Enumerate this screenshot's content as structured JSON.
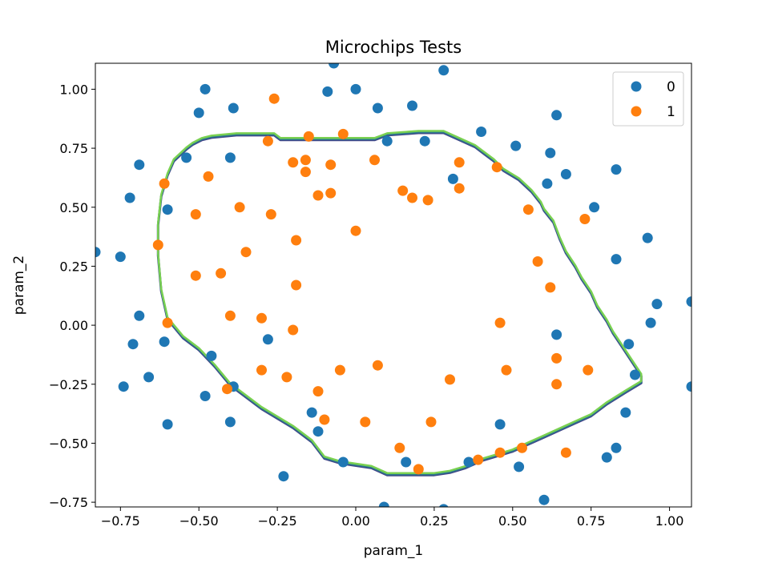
{
  "chart_data": {
    "type": "scatter",
    "title": "Microchips Tests",
    "xlabel": "param_1",
    "ylabel": "param_2",
    "xlim": [
      -0.83,
      1.07
    ],
    "ylim": [
      -0.77,
      1.11
    ],
    "xticks": [
      -0.75,
      -0.5,
      -0.25,
      0.0,
      0.25,
      0.5,
      0.75,
      1.0
    ],
    "xtick_labels": [
      "−0.75",
      "−0.50",
      "−0.25",
      "0.00",
      "0.25",
      "0.50",
      "0.75",
      "1.00"
    ],
    "yticks": [
      -0.75,
      -0.5,
      -0.25,
      0.0,
      0.25,
      0.5,
      0.75,
      1.0
    ],
    "ytick_labels": [
      "−0.75",
      "−0.50",
      "−0.25",
      "0.00",
      "0.25",
      "0.50",
      "0.75",
      "1.00"
    ],
    "grid": false,
    "legend_position": "top-right",
    "series": [
      {
        "name": "0",
        "color": "#1f77b4",
        "points": [
          [
            -0.83,
            0.31
          ],
          [
            -0.75,
            0.29
          ],
          [
            -0.74,
            -0.26
          ],
          [
            -0.72,
            0.54
          ],
          [
            -0.71,
            -0.08
          ],
          [
            -0.69,
            0.68
          ],
          [
            -0.69,
            0.04
          ],
          [
            -0.66,
            -0.22
          ],
          [
            -0.61,
            -0.07
          ],
          [
            -0.6,
            0.49
          ],
          [
            -0.6,
            -0.42
          ],
          [
            -0.54,
            0.71
          ],
          [
            -0.5,
            0.9
          ],
          [
            -0.48,
            1.0
          ],
          [
            -0.48,
            -0.3
          ],
          [
            -0.46,
            -0.13
          ],
          [
            -0.39,
            0.92
          ],
          [
            -0.4,
            0.71
          ],
          [
            -0.39,
            -0.26
          ],
          [
            -0.4,
            -0.41
          ],
          [
            -0.28,
            -0.06
          ],
          [
            -0.23,
            -0.64
          ],
          [
            -0.14,
            -0.37
          ],
          [
            -0.12,
            -0.45
          ],
          [
            -0.09,
            0.99
          ],
          [
            -0.07,
            1.11
          ],
          [
            -0.04,
            -0.58
          ],
          [
            0.0,
            1.0
          ],
          [
            0.07,
            0.92
          ],
          [
            0.1,
            0.78
          ],
          [
            0.09,
            -0.77
          ],
          [
            0.16,
            -0.58
          ],
          [
            0.18,
            0.93
          ],
          [
            0.22,
            0.78
          ],
          [
            0.28,
            1.08
          ],
          [
            0.28,
            -0.78
          ],
          [
            0.31,
            0.62
          ],
          [
            0.36,
            -0.58
          ],
          [
            0.4,
            0.82
          ],
          [
            0.46,
            -0.42
          ],
          [
            0.51,
            0.76
          ],
          [
            0.52,
            -0.6
          ],
          [
            0.6,
            -0.74
          ],
          [
            0.61,
            0.6
          ],
          [
            0.62,
            0.73
          ],
          [
            0.64,
            0.89
          ],
          [
            0.64,
            -0.04
          ],
          [
            0.67,
            0.64
          ],
          [
            0.76,
            0.5
          ],
          [
            0.8,
            -0.56
          ],
          [
            0.83,
            0.66
          ],
          [
            0.83,
            0.28
          ],
          [
            0.83,
            -0.52
          ],
          [
            0.86,
            -0.37
          ],
          [
            0.87,
            -0.08
          ],
          [
            0.89,
            -0.21
          ],
          [
            0.93,
            0.37
          ],
          [
            0.94,
            0.01
          ],
          [
            0.96,
            0.09
          ],
          [
            1.07,
            0.1
          ],
          [
            1.07,
            -0.26
          ]
        ]
      },
      {
        "name": "1",
        "color": "#ff7f0e",
        "points": [
          [
            -0.63,
            0.34
          ],
          [
            -0.61,
            0.6
          ],
          [
            -0.6,
            0.01
          ],
          [
            -0.51,
            0.21
          ],
          [
            -0.51,
            0.47
          ],
          [
            -0.47,
            0.63
          ],
          [
            -0.43,
            0.22
          ],
          [
            -0.41,
            -0.27
          ],
          [
            -0.4,
            0.04
          ],
          [
            -0.37,
            0.5
          ],
          [
            -0.35,
            0.31
          ],
          [
            -0.3,
            -0.19
          ],
          [
            -0.3,
            0.03
          ],
          [
            -0.28,
            0.78
          ],
          [
            -0.27,
            0.47
          ],
          [
            -0.26,
            0.96
          ],
          [
            -0.22,
            -0.22
          ],
          [
            -0.2,
            -0.02
          ],
          [
            -0.2,
            0.69
          ],
          [
            -0.19,
            0.36
          ],
          [
            -0.19,
            0.17
          ],
          [
            -0.16,
            0.65
          ],
          [
            -0.16,
            0.7
          ],
          [
            -0.15,
            0.8
          ],
          [
            -0.12,
            -0.28
          ],
          [
            -0.12,
            0.55
          ],
          [
            -0.1,
            -0.4
          ],
          [
            -0.08,
            0.68
          ],
          [
            -0.08,
            0.56
          ],
          [
            -0.05,
            -0.19
          ],
          [
            -0.04,
            0.81
          ],
          [
            0.0,
            0.4
          ],
          [
            0.03,
            -0.41
          ],
          [
            0.06,
            0.7
          ],
          [
            0.07,
            -0.17
          ],
          [
            0.14,
            -0.52
          ],
          [
            0.15,
            0.57
          ],
          [
            0.18,
            0.54
          ],
          [
            0.2,
            -0.61
          ],
          [
            0.23,
            0.53
          ],
          [
            0.24,
            -0.41
          ],
          [
            0.3,
            -0.23
          ],
          [
            0.33,
            0.69
          ],
          [
            0.33,
            0.58
          ],
          [
            0.39,
            -0.57
          ],
          [
            0.45,
            0.67
          ],
          [
            0.46,
            0.01
          ],
          [
            0.46,
            -0.54
          ],
          [
            0.48,
            -0.19
          ],
          [
            0.53,
            -0.52
          ],
          [
            0.55,
            0.49
          ],
          [
            0.58,
            0.27
          ],
          [
            0.62,
            0.16
          ],
          [
            0.64,
            -0.14
          ],
          [
            0.64,
            -0.25
          ],
          [
            0.67,
            -0.54
          ],
          [
            0.73,
            0.45
          ],
          [
            0.74,
            -0.19
          ]
        ]
      }
    ],
    "decision_boundary": {
      "colors": [
        "#414487",
        "#2a788e",
        "#7ad151"
      ],
      "points": [
        [
          -0.6,
          0.64
        ],
        [
          -0.58,
          0.7
        ],
        [
          -0.54,
          0.75
        ],
        [
          -0.52,
          0.77
        ],
        [
          -0.49,
          0.79
        ],
        [
          -0.46,
          0.8
        ],
        [
          -0.38,
          0.81
        ],
        [
          -0.26,
          0.81
        ],
        [
          -0.24,
          0.79
        ],
        [
          -0.16,
          0.79
        ],
        [
          0.06,
          0.79
        ],
        [
          0.08,
          0.8
        ],
        [
          0.1,
          0.81
        ],
        [
          0.2,
          0.82
        ],
        [
          0.28,
          0.82
        ],
        [
          0.33,
          0.79
        ],
        [
          0.38,
          0.76
        ],
        [
          0.41,
          0.73
        ],
        [
          0.44,
          0.7
        ],
        [
          0.47,
          0.66
        ],
        [
          0.52,
          0.62
        ],
        [
          0.56,
          0.57
        ],
        [
          0.59,
          0.52
        ],
        [
          0.6,
          0.49
        ],
        [
          0.63,
          0.44
        ],
        [
          0.65,
          0.37
        ],
        [
          0.67,
          0.31
        ],
        [
          0.7,
          0.25
        ],
        [
          0.72,
          0.2
        ],
        [
          0.75,
          0.14
        ],
        [
          0.77,
          0.08
        ],
        [
          0.8,
          0.02
        ],
        [
          0.82,
          -0.03
        ],
        [
          0.85,
          -0.09
        ],
        [
          0.88,
          -0.15
        ],
        [
          0.91,
          -0.21
        ],
        [
          0.91,
          -0.24
        ],
        [
          0.86,
          -0.28
        ],
        [
          0.8,
          -0.33
        ],
        [
          0.75,
          -0.38
        ],
        [
          0.7,
          -0.41
        ],
        [
          0.65,
          -0.44
        ],
        [
          0.6,
          -0.47
        ],
        [
          0.55,
          -0.5
        ],
        [
          0.5,
          -0.53
        ],
        [
          0.45,
          -0.55
        ],
        [
          0.4,
          -0.57
        ],
        [
          0.35,
          -0.6
        ],
        [
          0.3,
          -0.62
        ],
        [
          0.25,
          -0.63
        ],
        [
          0.1,
          -0.63
        ],
        [
          0.05,
          -0.6
        ],
        [
          -0.05,
          -0.58
        ],
        [
          -0.1,
          -0.56
        ],
        [
          -0.14,
          -0.49
        ],
        [
          -0.2,
          -0.43
        ],
        [
          -0.3,
          -0.35
        ],
        [
          -0.4,
          -0.25
        ],
        [
          -0.45,
          -0.17
        ],
        [
          -0.5,
          -0.1
        ],
        [
          -0.55,
          -0.05
        ],
        [
          -0.6,
          0.03
        ],
        [
          -0.62,
          0.15
        ],
        [
          -0.63,
          0.3
        ],
        [
          -0.63,
          0.43
        ],
        [
          -0.62,
          0.55
        ]
      ]
    }
  }
}
